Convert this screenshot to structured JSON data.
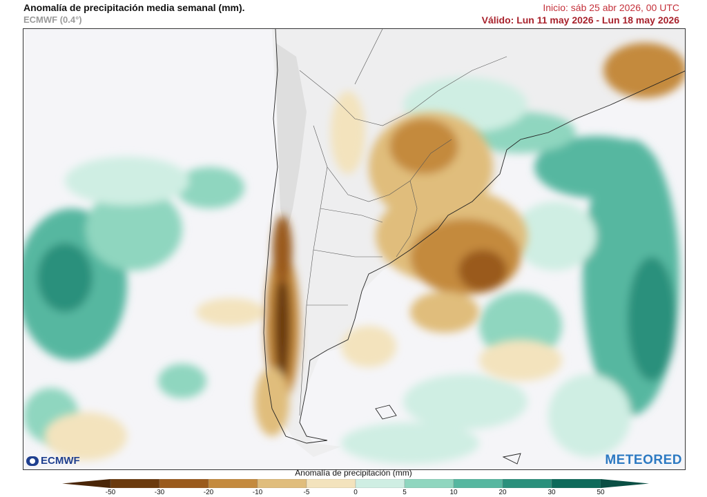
{
  "header": {
    "title": "Anomalía de precipitación media semanal (mm).",
    "model": "ECMWF (0.4°)",
    "init": "Inicio:  sáb 25 abr 2026, 00 UTC",
    "valid": "Válido: Lun 11 may 2026 - Lun 18 may 2026"
  },
  "map": {
    "region": "South America (southern cone)",
    "logos": {
      "left": "ECMWF",
      "right": "METEORED"
    }
  },
  "legend": {
    "label": "Anomalía de precipitación (mm)",
    "ticks": [
      "-50",
      "-30",
      "-20",
      "-10",
      "-5",
      "0",
      "5",
      "10",
      "20",
      "30",
      "50"
    ],
    "colors": [
      "#6b3a0e",
      "#9a5a1c",
      "#c48a3e",
      "#e0bd7c",
      "#f3e3bd",
      "#f5f5f8",
      "#cfeee3",
      "#8fd6bf",
      "#56b7a0",
      "#2a907c",
      "#0d6a5a"
    ]
  }
}
